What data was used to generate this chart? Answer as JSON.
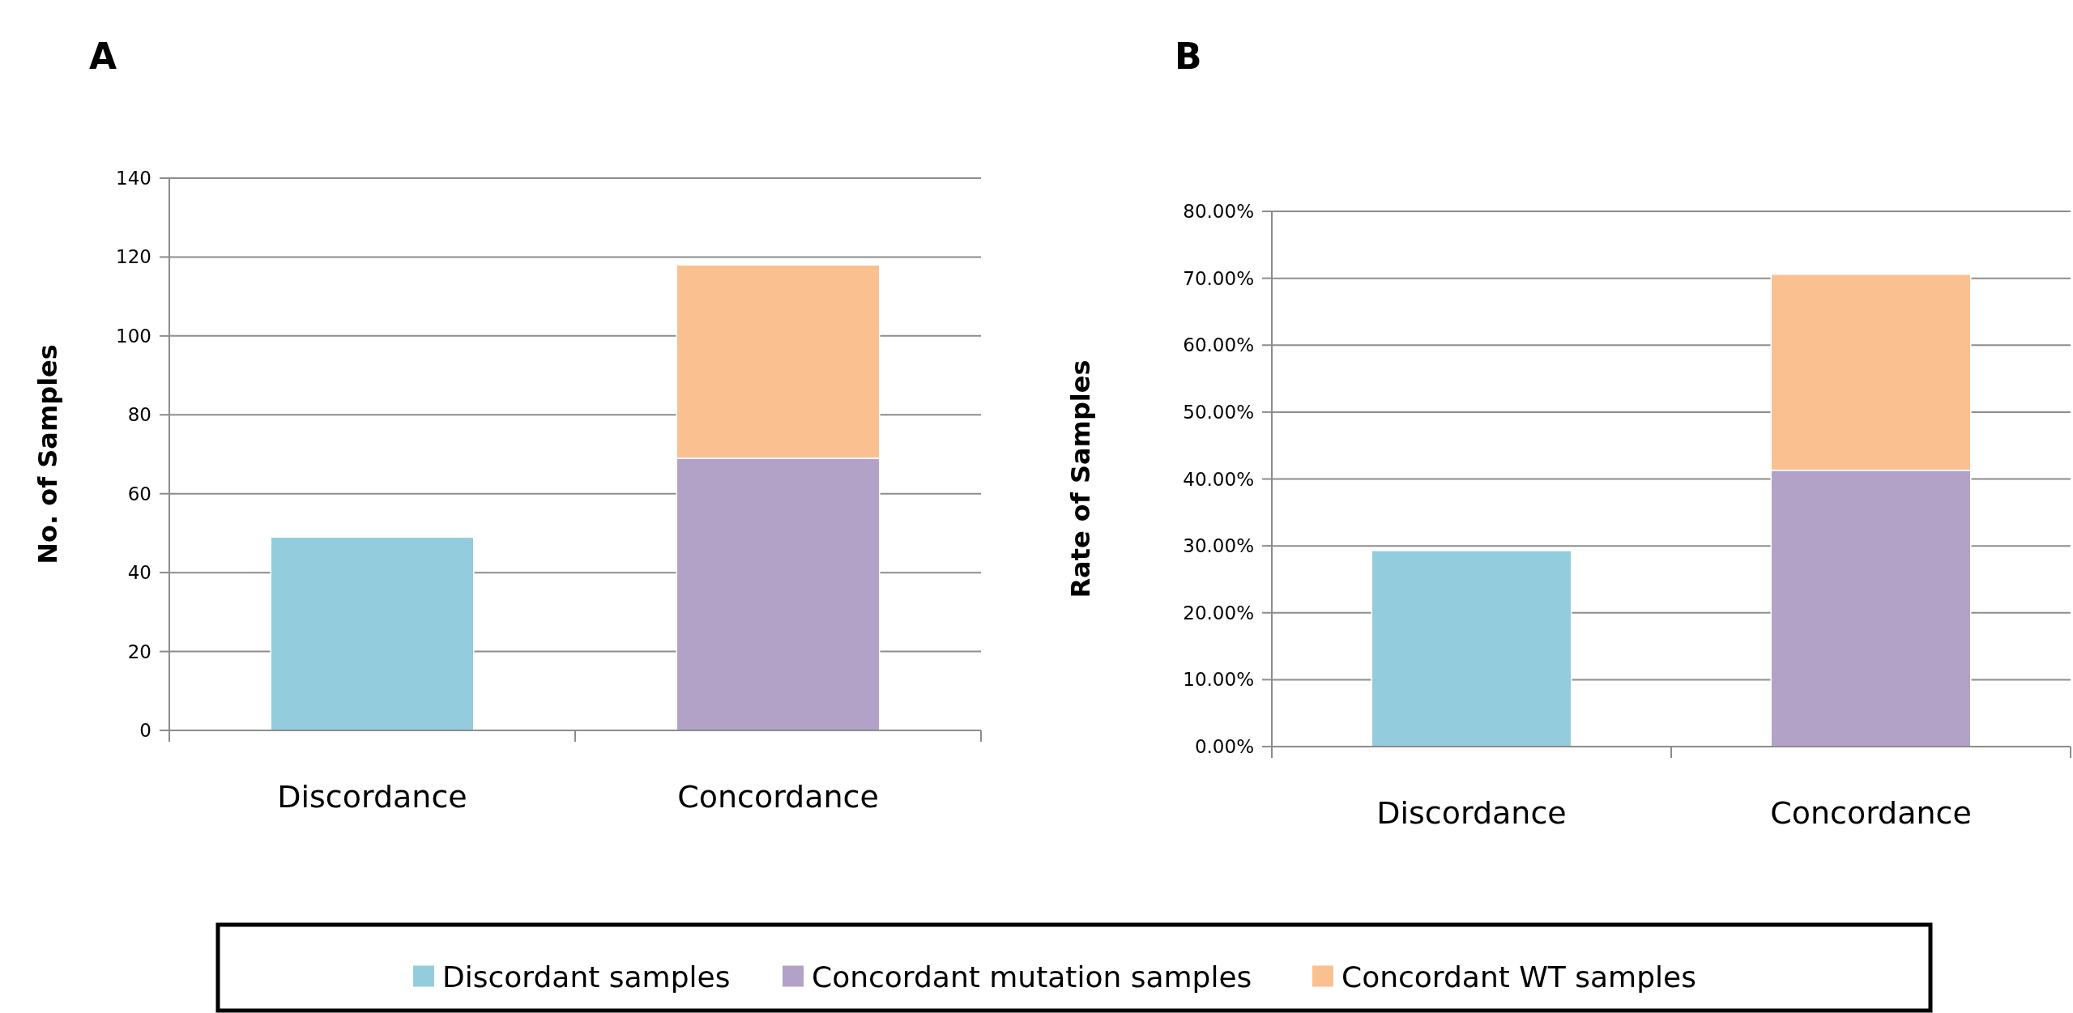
{
  "chart_data": [
    {
      "type": "bar",
      "title": "A",
      "ylabel": "No. of Samples",
      "categories": [
        "Discordance",
        "Concordance"
      ],
      "stacked": true,
      "ylim": [
        0,
        140
      ],
      "yticks": [
        0,
        20,
        40,
        60,
        80,
        100,
        120,
        140
      ],
      "grid": "y",
      "legend": "bottom",
      "series": [
        {
          "name": "Discordant samples",
          "color": "#93cddd",
          "values": [
            49,
            null
          ]
        },
        {
          "name": "Concordant mutation samples",
          "color": "#b3a2c7",
          "values": [
            null,
            69
          ]
        },
        {
          "name": "Concordant WT samples",
          "color": "#fac090",
          "values": [
            null,
            49
          ]
        }
      ]
    },
    {
      "type": "bar",
      "title": "B",
      "ylabel": "Rate of Samples",
      "categories": [
        "Discordance",
        "Concordance"
      ],
      "stacked": true,
      "ylim": [
        0,
        80
      ],
      "yticks": [
        {
          "value": 0,
          "label": "0.00%"
        },
        {
          "value": 10,
          "label": "10.00%"
        },
        {
          "value": 20,
          "label": "20.00%"
        },
        {
          "value": 30,
          "label": "30.00%"
        },
        {
          "value": 40,
          "label": "40.00%"
        },
        {
          "value": 50,
          "label": "50.00%"
        },
        {
          "value": 60,
          "label": "60.00%"
        },
        {
          "value": 70,
          "label": "70.00%"
        },
        {
          "value": 80,
          "label": "80.00%"
        }
      ],
      "grid": "y",
      "series": [
        {
          "color": "#93cddd",
          "values": [
            29.3,
            null
          ]
        },
        {
          "color": "#b3a2c7",
          "values": [
            null,
            41.3
          ]
        },
        {
          "color": "#fac090",
          "values": [
            null,
            29.3
          ]
        }
      ]
    }
  ]
}
